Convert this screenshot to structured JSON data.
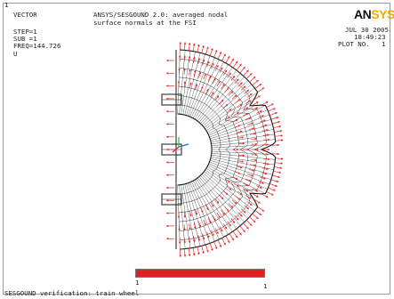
{
  "header": {
    "window_number": "1",
    "plot_type": "VECTOR",
    "step": "STEP=1",
    "sub": "SUB =1",
    "freq": "FREQ=144.726",
    "field": "U",
    "title_line1": "ANSYS/SESGOUND 2.0: averaged nodal",
    "title_line2": "surface normals at the FSI",
    "date": "JUL 30 2005",
    "time": "18:49:23",
    "plot_no": "PLOT NO.   1"
  },
  "logo": {
    "part1": "AN",
    "part2": "SYS"
  },
  "legend": {
    "min_label": "1",
    "max_label": "1",
    "bar_color": "#e41f1f"
  },
  "footer": {
    "caption": "SESGOUND verification: train wheel"
  },
  "colors": {
    "vector": "#ee2222",
    "mesh": "#1a1a1a",
    "frame": "#9a9a9a",
    "logo_accent": "#f2a900"
  }
}
